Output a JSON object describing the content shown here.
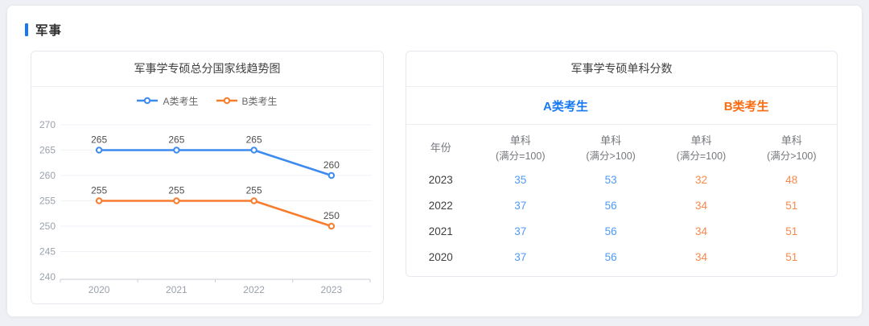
{
  "page": {
    "background": "#eef0f5"
  },
  "section": {
    "title": "军事",
    "accent_color": "#1778f2"
  },
  "chart_data": {
    "type": "line",
    "title": "军事学专硕总分国家线趋势图",
    "categories": [
      "2020",
      "2021",
      "2022",
      "2023"
    ],
    "series": [
      {
        "name": "A类考生",
        "color": "#3d8bf0",
        "values": [
          265,
          265,
          265,
          260
        ]
      },
      {
        "name": "B类考生",
        "color": "#f87c2d",
        "values": [
          255,
          255,
          255,
          250
        ]
      }
    ],
    "xlabel": "",
    "ylabel": "",
    "ylim": [
      240,
      270
    ],
    "ytick_step": 5,
    "yticks": [
      240,
      245,
      250,
      255,
      260,
      265,
      270
    ],
    "grid": true,
    "legend_position": "top",
    "value_labels": true,
    "axis_label_color": "#9aa1ad",
    "value_label_color": "#4f4f4f",
    "gridline_color": "#f0f2f8",
    "axis_line_color": "#c9ced6"
  },
  "table_panel": {
    "title": "军事学专硕单科分数",
    "group_headers": [
      {
        "label": "A类考生",
        "color": "#1778f2"
      },
      {
        "label": "B类考生",
        "color": "#fb6c12"
      }
    ],
    "year_column_label": "年份",
    "sub_columns": [
      {
        "line1": "单科",
        "line2": "(满分=100)"
      },
      {
        "line1": "单科",
        "line2": "(满分>100)"
      },
      {
        "line1": "单科",
        "line2": "(满分=100)"
      },
      {
        "line1": "单科",
        "line2": "(满分>100)"
      }
    ],
    "value_colors": [
      "#4d9bf5",
      "#4d9bf5",
      "#f9884a",
      "#f9884a"
    ],
    "rows": [
      {
        "year": "2023",
        "values": [
          "35",
          "53",
          "32",
          "48"
        ]
      },
      {
        "year": "2022",
        "values": [
          "37",
          "56",
          "34",
          "51"
        ]
      },
      {
        "year": "2021",
        "values": [
          "37",
          "56",
          "34",
          "51"
        ]
      },
      {
        "year": "2020",
        "values": [
          "37",
          "56",
          "34",
          "51"
        ]
      }
    ]
  }
}
